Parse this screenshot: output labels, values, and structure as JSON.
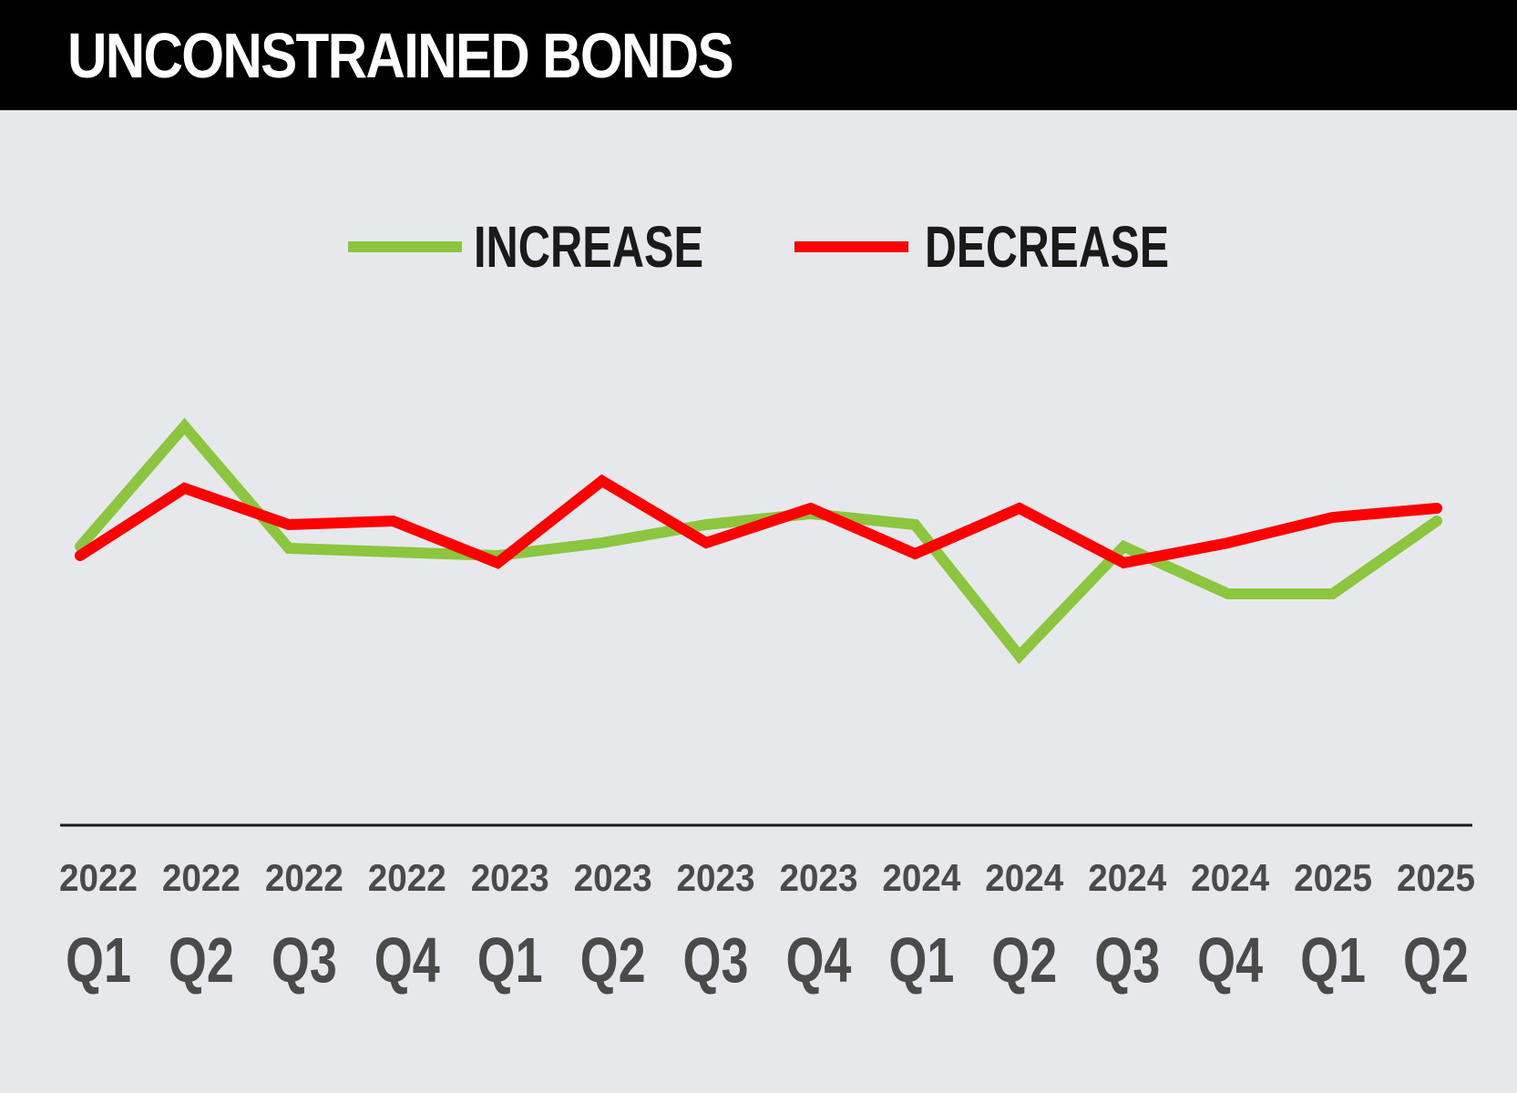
{
  "header": {
    "title": "UNCONSTRAINED BONDS"
  },
  "chart_data": {
    "type": "line",
    "title": "UNCONSTRAINED BONDS",
    "xlabel": "",
    "ylabel": "",
    "grid": false,
    "legend_position": "top-center",
    "categories": [
      {
        "year": "2022",
        "quarter": "Q1"
      },
      {
        "year": "2022",
        "quarter": "Q2"
      },
      {
        "year": "2022",
        "quarter": "Q3"
      },
      {
        "year": "2022",
        "quarter": "Q4"
      },
      {
        "year": "2023",
        "quarter": "Q1"
      },
      {
        "year": "2023",
        "quarter": "Q2"
      },
      {
        "year": "2023",
        "quarter": "Q3"
      },
      {
        "year": "2023",
        "quarter": "Q4"
      },
      {
        "year": "2024",
        "quarter": "Q1"
      },
      {
        "year": "2024",
        "quarter": "Q2"
      },
      {
        "year": "2024",
        "quarter": "Q3"
      },
      {
        "year": "2024",
        "quarter": "Q4"
      },
      {
        "year": "2025",
        "quarter": "Q1"
      },
      {
        "year": "2025",
        "quarter": "Q2"
      }
    ],
    "ylim": [
      0,
      100
    ],
    "series": [
      {
        "name": "INCREASE",
        "color": "#8cc63f",
        "values": [
          50,
          83,
          49.5,
          48.5,
          47.5,
          51,
          56,
          59,
          56,
          20,
          50,
          37,
          37,
          57
        ]
      },
      {
        "name": "DECREASE",
        "color": "#ff0000",
        "values": [
          47.5,
          66,
          56,
          57,
          45.5,
          68,
          51,
          60.5,
          48,
          60.5,
          45.5,
          51,
          58,
          60.5
        ]
      }
    ]
  }
}
